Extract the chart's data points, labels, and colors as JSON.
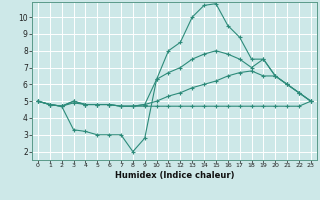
{
  "xlabel": "Humidex (Indice chaleur)",
  "bg_color": "#cde8e8",
  "grid_color": "#ffffff",
  "line_color": "#2d8b7a",
  "xlim": [
    -0.5,
    23.5
  ],
  "ylim": [
    1.5,
    10.9
  ],
  "xticks": [
    0,
    1,
    2,
    3,
    4,
    5,
    6,
    7,
    8,
    9,
    10,
    11,
    12,
    13,
    14,
    15,
    16,
    17,
    18,
    19,
    20,
    21,
    22,
    23
  ],
  "yticks": [
    2,
    3,
    4,
    5,
    6,
    7,
    8,
    9,
    10
  ],
  "series": [
    [
      5.0,
      4.8,
      4.7,
      4.9,
      4.8,
      4.8,
      4.8,
      4.7,
      4.7,
      4.7,
      4.7,
      4.7,
      4.7,
      4.7,
      4.7,
      4.7,
      4.7,
      4.7,
      4.7,
      4.7,
      4.7,
      4.7,
      4.7,
      5.0
    ],
    [
      5.0,
      4.8,
      4.7,
      3.3,
      3.2,
      3.0,
      3.0,
      3.0,
      2.0,
      2.8,
      6.3,
      8.0,
      8.5,
      10.0,
      10.7,
      10.8,
      9.5,
      8.8,
      7.5,
      7.5,
      6.5,
      6.0,
      5.5,
      5.0
    ],
    [
      5.0,
      4.8,
      4.7,
      5.0,
      4.8,
      4.8,
      4.8,
      4.7,
      4.7,
      4.8,
      5.0,
      5.3,
      5.5,
      5.8,
      6.0,
      6.2,
      6.5,
      6.7,
      6.8,
      6.5,
      6.5,
      6.0,
      5.5,
      5.0
    ],
    [
      5.0,
      4.8,
      4.7,
      5.0,
      4.8,
      4.8,
      4.8,
      4.7,
      4.7,
      4.8,
      6.3,
      6.7,
      7.0,
      7.5,
      7.8,
      8.0,
      7.8,
      7.5,
      7.0,
      7.5,
      6.5,
      6.0,
      5.5,
      5.0
    ]
  ]
}
